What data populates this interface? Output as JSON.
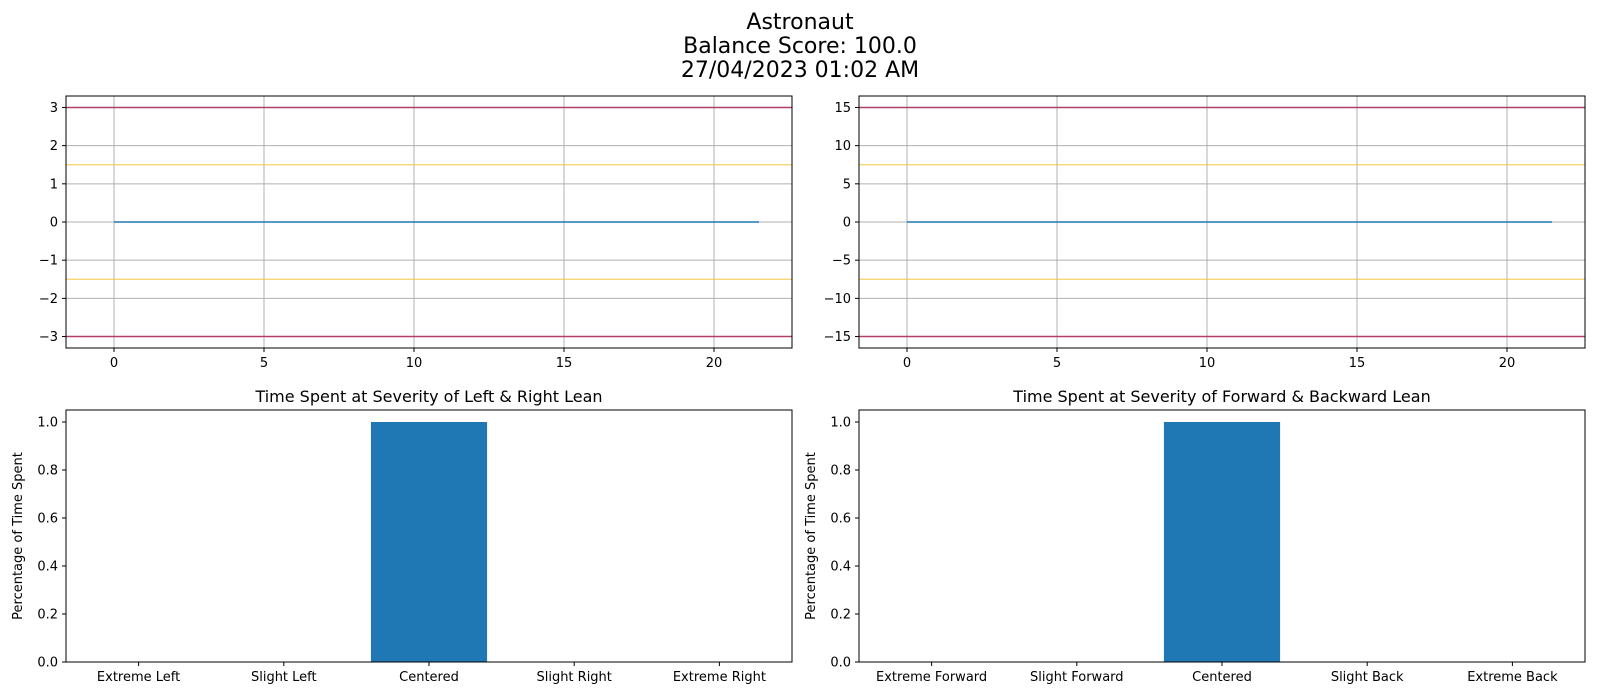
{
  "figure": {
    "title_lines": [
      "Astronaut",
      "Balance Score: 100.0",
      "27/04/2023 01:02 AM"
    ]
  },
  "colors": {
    "series": "#1f77b4",
    "extreme_threshold": "#b03060",
    "slight_threshold": "#f5c542",
    "grid": "#b0b0b0"
  },
  "chart_data": [
    {
      "type": "line",
      "title": "",
      "xlabel": "",
      "ylabel": "",
      "xlim": [
        -1.6,
        22.6
      ],
      "ylim": [
        -3.3,
        3.3
      ],
      "xticks": [
        0,
        5,
        10,
        15,
        20
      ],
      "xtick_labels": [
        "0",
        "5",
        "10",
        "15",
        "20"
      ],
      "yticks": [
        -3,
        -2,
        -1,
        0,
        1,
        2,
        3
      ],
      "ytick_labels": [
        "−3",
        "−2",
        "−1",
        "0",
        "1",
        "2",
        "3"
      ],
      "grid": true,
      "series": [
        {
          "x": [
            0,
            21.5
          ],
          "y": [
            0,
            0
          ]
        }
      ],
      "hlines": [
        {
          "y": 3,
          "kind": "extreme"
        },
        {
          "y": -3,
          "kind": "extreme"
        },
        {
          "y": 1.5,
          "kind": "slight"
        },
        {
          "y": -1.5,
          "kind": "slight"
        }
      ]
    },
    {
      "type": "line",
      "title": "",
      "xlabel": "",
      "ylabel": "",
      "xlim": [
        -1.6,
        22.6
      ],
      "ylim": [
        -16.5,
        16.5
      ],
      "xticks": [
        0,
        5,
        10,
        15,
        20
      ],
      "xtick_labels": [
        "0",
        "5",
        "10",
        "15",
        "20"
      ],
      "yticks": [
        -15,
        -10,
        -5,
        0,
        5,
        10,
        15
      ],
      "ytick_labels": [
        "−15",
        "−10",
        "−5",
        "0",
        "5",
        "10",
        "15"
      ],
      "grid": true,
      "series": [
        {
          "x": [
            0,
            21.5
          ],
          "y": [
            0,
            0
          ]
        }
      ],
      "hlines": [
        {
          "y": 15,
          "kind": "extreme"
        },
        {
          "y": -15,
          "kind": "extreme"
        },
        {
          "y": 7.5,
          "kind": "slight"
        },
        {
          "y": -7.5,
          "kind": "slight"
        }
      ]
    },
    {
      "type": "bar",
      "title": "Time Spent at Severity of Left & Right Lean",
      "xlabel": "",
      "ylabel": "Percentage of Time Spent",
      "ylim": [
        0,
        1.05
      ],
      "yticks": [
        0,
        0.2,
        0.4,
        0.6,
        0.8,
        1.0
      ],
      "ytick_labels": [
        "0.0",
        "0.2",
        "0.4",
        "0.6",
        "0.8",
        "1.0"
      ],
      "grid": false,
      "categories": [
        "Extreme Left",
        "Slight Left",
        "Centered",
        "Slight Right",
        "Extreme Right"
      ],
      "values": [
        0,
        0,
        1.0,
        0,
        0
      ]
    },
    {
      "type": "bar",
      "title": "Time Spent at Severity of Forward & Backward Lean",
      "xlabel": "",
      "ylabel": "Percentage of Time Spent",
      "ylim": [
        0,
        1.05
      ],
      "yticks": [
        0,
        0.2,
        0.4,
        0.6,
        0.8,
        1.0
      ],
      "ytick_labels": [
        "0.0",
        "0.2",
        "0.4",
        "0.6",
        "0.8",
        "1.0"
      ],
      "grid": false,
      "categories": [
        "Extreme Forward",
        "Slight Forward",
        "Centered",
        "Slight Back",
        "Extreme Back"
      ],
      "values": [
        0,
        0,
        1.0,
        0,
        0
      ]
    }
  ]
}
